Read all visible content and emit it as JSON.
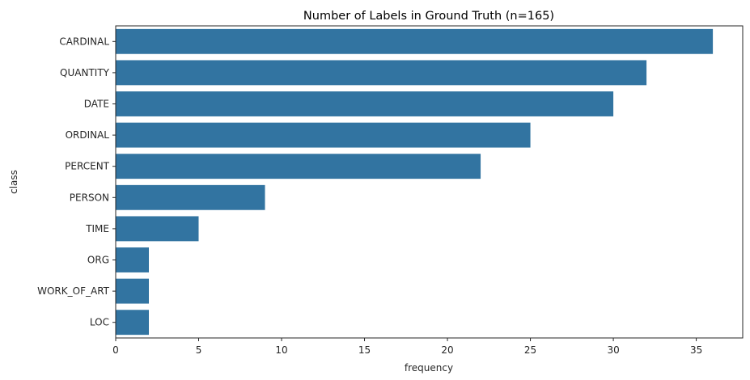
{
  "chart_data": {
    "type": "bar",
    "orientation": "horizontal",
    "title": "Number of Labels in Ground Truth (n=165)",
    "xlabel": "frequency",
    "ylabel": "class",
    "categories": [
      "CARDINAL",
      "QUANTITY",
      "DATE",
      "ORDINAL",
      "PERCENT",
      "PERSON",
      "TIME",
      "ORG",
      "WORK_OF_ART",
      "LOC"
    ],
    "values": [
      36,
      32,
      30,
      25,
      22,
      9,
      5,
      2,
      2,
      2
    ],
    "xlim": [
      0,
      37.8
    ],
    "xticks": [
      0,
      5,
      10,
      15,
      20,
      25,
      30,
      35
    ],
    "grid": false,
    "bar_color": "#3274a1"
  }
}
